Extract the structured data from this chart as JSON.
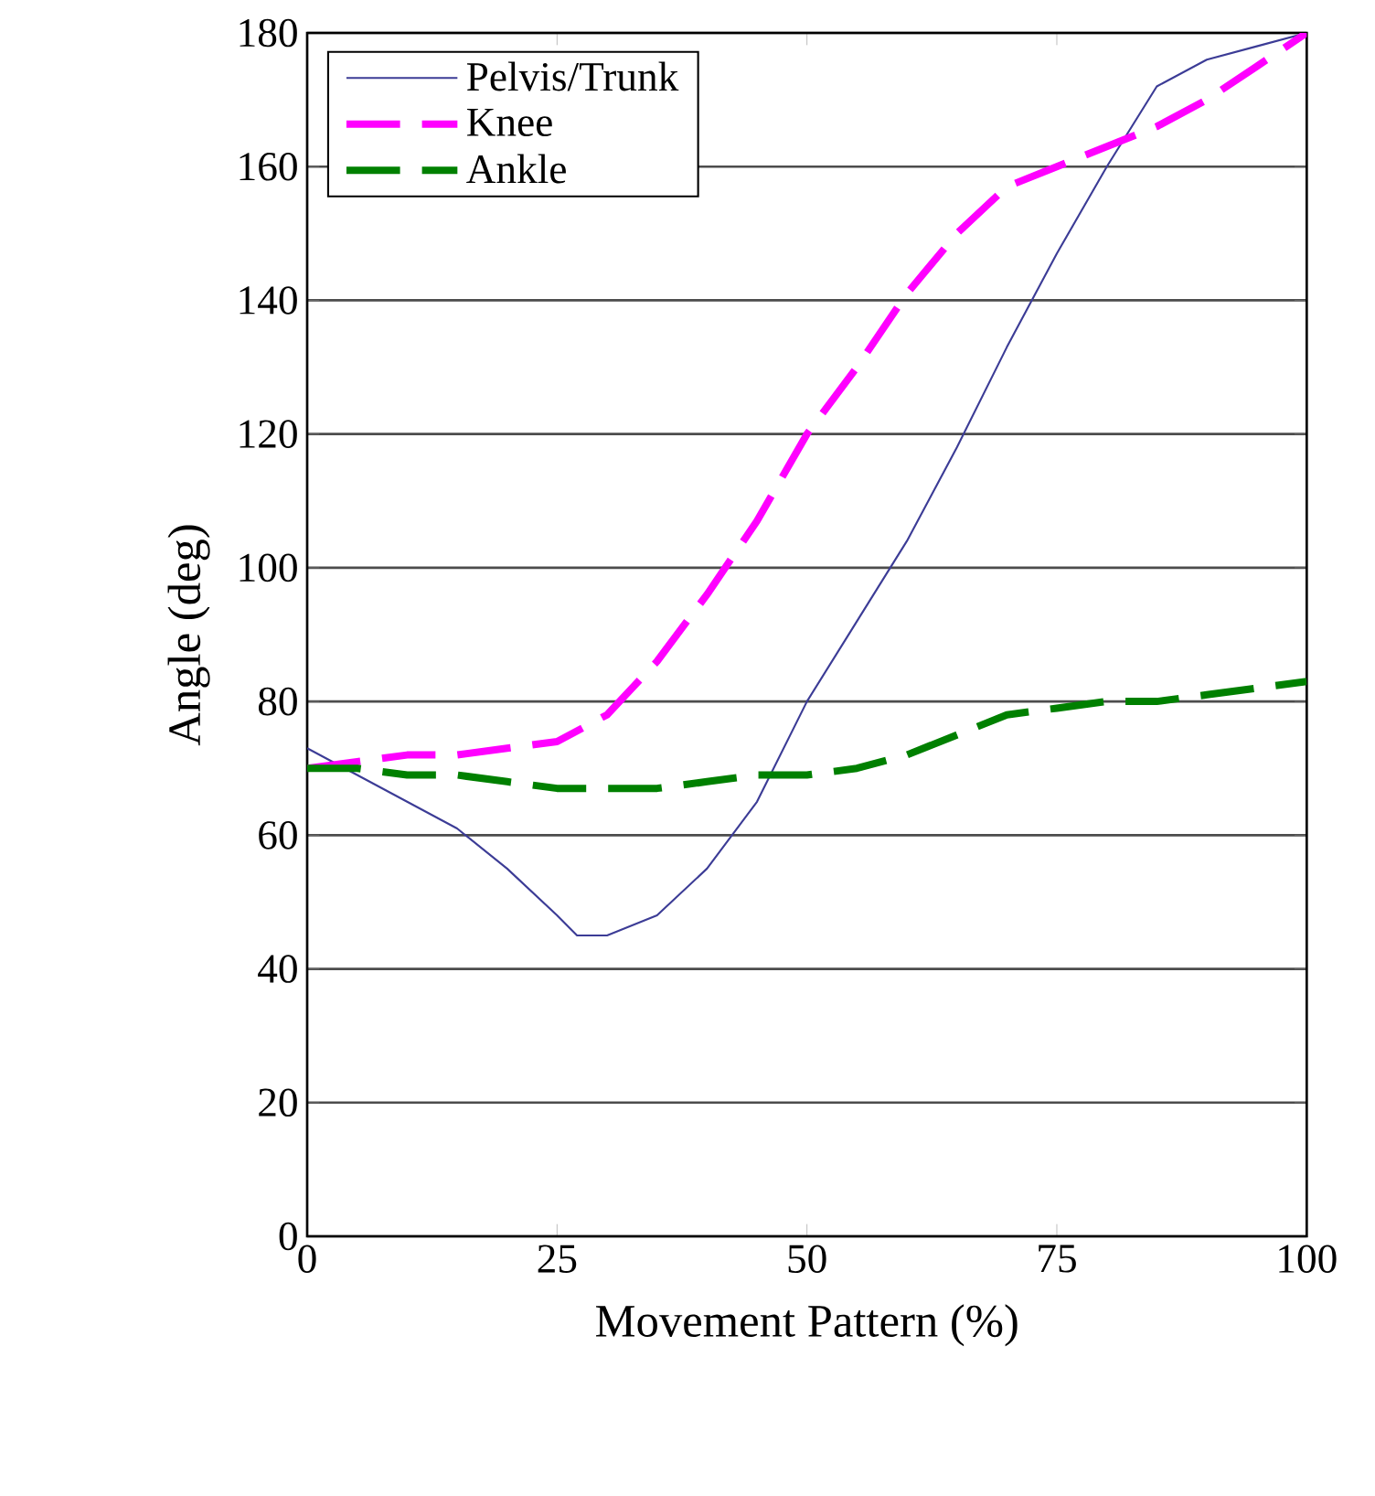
{
  "chart_data": {
    "type": "line",
    "xlabel": "Movement Pattern (%)",
    "ylabel": "Angle (deg)",
    "xlim": [
      0,
      100
    ],
    "ylim": [
      0,
      180
    ],
    "xticks": [
      0,
      25,
      50,
      75,
      100
    ],
    "yticks": [
      0,
      20,
      40,
      60,
      80,
      100,
      120,
      140,
      160,
      180
    ],
    "grid": "y",
    "legend": "top left",
    "series": [
      {
        "name": "Pelvis/Trunk",
        "color": "#3c3c96",
        "line_style": "solid",
        "x": [
          0,
          5,
          10,
          15,
          20,
          25,
          27,
          30,
          35,
          40,
          45,
          50,
          55,
          60,
          65,
          70,
          75,
          80,
          85,
          90,
          95,
          100
        ],
        "values": [
          73,
          69,
          65,
          61,
          55,
          48,
          45,
          45,
          48,
          55,
          65,
          80,
          92,
          104,
          118,
          133,
          147,
          160,
          172,
          176,
          178,
          180
        ]
      },
      {
        "name": "Knee",
        "color": "#ff00ff",
        "line_style": "dashed",
        "x": [
          0,
          5,
          10,
          15,
          20,
          25,
          30,
          35,
          40,
          45,
          50,
          55,
          60,
          65,
          70,
          75,
          80,
          85,
          90,
          95,
          100
        ],
        "values": [
          70,
          71,
          72,
          72,
          73,
          74,
          78,
          86,
          96,
          107,
          120,
          130,
          141,
          150,
          157,
          160,
          163,
          166,
          170,
          175,
          180
        ]
      },
      {
        "name": "Ankle",
        "color": "#008000",
        "line_style": "dashed",
        "x": [
          0,
          5,
          10,
          15,
          20,
          25,
          30,
          35,
          40,
          45,
          50,
          55,
          60,
          65,
          70,
          75,
          80,
          85,
          90,
          95,
          100
        ],
        "values": [
          70,
          70,
          69,
          69,
          68,
          67,
          67,
          67,
          68,
          69,
          69,
          70,
          72,
          75,
          78,
          79,
          80,
          80,
          81,
          82,
          83
        ]
      }
    ]
  }
}
